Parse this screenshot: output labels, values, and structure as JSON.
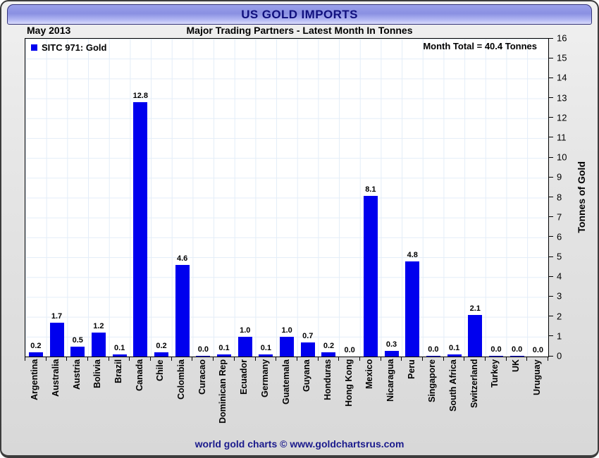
{
  "header": {
    "title": "US GOLD IMPORTS",
    "period": "May 2013",
    "subtitle": "Major Trading Partners - Latest Month In Tonnes"
  },
  "legend": {
    "label": "SITC 971: Gold"
  },
  "annotation": {
    "text": "Month Total = 40.4 Tonnes"
  },
  "footer": {
    "text": "world gold charts © www.goldchartsrus.com"
  },
  "colors": {
    "bar": "#0000ee",
    "band_title": "#10107e",
    "band_top": "#9aa0ea",
    "band_bottom": "#dadcfb",
    "grid_line": "#e3edf8",
    "plot_bg": "#ffffff",
    "frame_bg": "#e0e0e0",
    "footer_text": "#1a1a8c"
  },
  "chart_data": {
    "type": "bar",
    "title": "US GOLD IMPORTS",
    "subtitle": "Major Trading Partners - Latest Month In Tonnes",
    "period": "May 2013",
    "month_total_tonnes": 40.4,
    "series_name": "SITC 971: Gold",
    "ylabel": "Tonnes of Gold",
    "xlabel": "",
    "ylim": [
      0,
      16
    ],
    "y_tick_step": 1,
    "y_axis_side": "right",
    "grid": true,
    "legend_position": "top-left",
    "categories": [
      "Argentina",
      "Australia",
      "Austria",
      "Bolivia",
      "Brazil",
      "Canada",
      "Chile",
      "Colombia",
      "Curacao",
      "Dominican Rep",
      "Ecuador",
      "Germany",
      "Guatemala",
      "Guyana",
      "Honduras",
      "Hong Kong",
      "Mexico",
      "Nicaragua",
      "Peru",
      "Singapore",
      "South Africa",
      "Switzerland",
      "Turkey",
      "UK",
      "Uruguay"
    ],
    "values": [
      0.2,
      1.7,
      0.5,
      1.2,
      0.1,
      12.8,
      0.2,
      4.6,
      0.0,
      0.1,
      1.0,
      0.1,
      1.0,
      0.7,
      0.2,
      0.0,
      8.1,
      0.3,
      4.8,
      0.0,
      0.1,
      2.1,
      0.0,
      0.0,
      0.0
    ],
    "value_labels": [
      "0.2",
      "1.7",
      "0.5",
      "1.2",
      "0.1",
      "12.8",
      "0.2",
      "4.6",
      "0.0",
      "0.1",
      "1.0",
      "0.1",
      "1.0",
      "0.7",
      "0.2",
      "0.0",
      "8.1",
      "0.3",
      "4.8",
      "0.0",
      "0.1",
      "2.1",
      "0.0",
      "0.0",
      "0.0"
    ],
    "hairline_zero_bars": [
      "Curacao",
      "Singapore",
      "Turkey",
      "UK"
    ]
  }
}
